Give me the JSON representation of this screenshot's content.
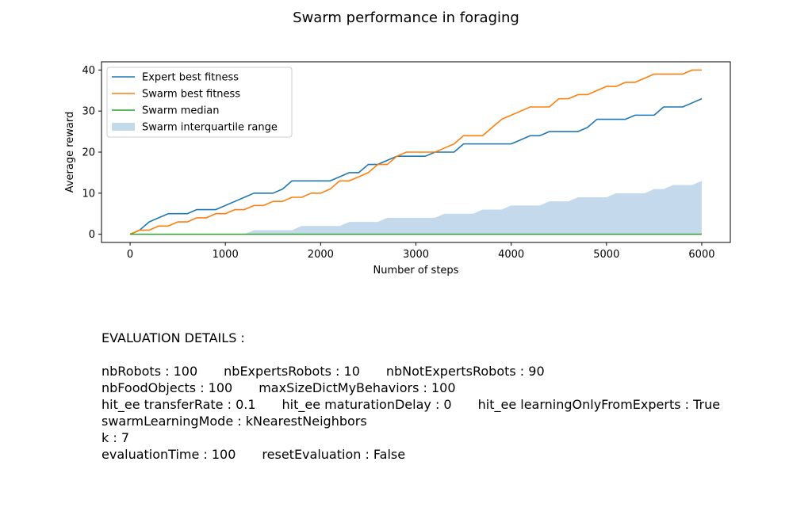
{
  "chart_data": {
    "type": "line",
    "title": "Swarm performance in foraging",
    "xlabel": "Number of steps",
    "ylabel": "Average reward",
    "xlim": [
      -300,
      6300
    ],
    "ylim": [
      -2,
      42
    ],
    "xticks": [
      0,
      1000,
      2000,
      3000,
      4000,
      5000,
      6000
    ],
    "yticks": [
      0,
      10,
      20,
      30,
      40
    ],
    "grid": false,
    "legend_position": "top-left",
    "x": [
      0,
      100,
      200,
      300,
      400,
      500,
      600,
      700,
      800,
      900,
      1000,
      1100,
      1200,
      1300,
      1400,
      1500,
      1600,
      1700,
      1800,
      1900,
      2000,
      2100,
      2200,
      2300,
      2400,
      2500,
      2600,
      2700,
      2800,
      2900,
      3000,
      3100,
      3200,
      3300,
      3400,
      3500,
      3600,
      3700,
      3800,
      3900,
      4000,
      4100,
      4200,
      4300,
      4400,
      4500,
      4600,
      4700,
      4800,
      4900,
      5000,
      5100,
      5200,
      5300,
      5400,
      5500,
      5600,
      5700,
      5800,
      5900,
      6000
    ],
    "series": [
      {
        "name": "Expert best fitness",
        "type": "line",
        "color": "#1f77b4",
        "values": [
          0,
          1,
          3,
          4,
          5,
          5,
          5,
          6,
          6,
          6,
          7,
          8,
          9,
          10,
          10,
          10,
          11,
          13,
          13,
          13,
          13,
          13,
          14,
          15,
          15,
          17,
          17,
          18,
          19,
          19,
          19,
          19,
          20,
          20,
          20,
          22,
          22,
          22,
          22,
          22,
          22,
          23,
          24,
          24,
          25,
          25,
          25,
          25,
          26,
          28,
          28,
          28,
          28,
          29,
          29,
          29,
          31,
          31,
          31,
          32,
          33
        ]
      },
      {
        "name": "Swarm best fitness",
        "type": "line",
        "color": "#ff7f0e",
        "values": [
          0,
          1,
          1,
          2,
          2,
          3,
          3,
          4,
          4,
          5,
          5,
          6,
          6,
          7,
          7,
          8,
          8,
          9,
          9,
          10,
          10,
          11,
          13,
          13,
          14,
          15,
          17,
          17,
          19,
          20,
          20,
          20,
          20,
          21,
          22,
          24,
          24,
          24,
          26,
          28,
          29,
          30,
          31,
          31,
          31,
          33,
          33,
          34,
          34,
          35,
          36,
          36,
          37,
          37,
          38,
          39,
          39,
          39,
          39,
          40,
          40
        ]
      },
      {
        "name": "Swarm median",
        "type": "line",
        "color": "#2ca02c",
        "values": [
          0,
          0,
          0,
          0,
          0,
          0,
          0,
          0,
          0,
          0,
          0,
          0,
          0,
          0,
          0,
          0,
          0,
          0,
          0,
          0,
          0,
          0,
          0,
          0,
          0,
          0,
          0,
          0,
          0,
          0,
          0,
          0,
          0,
          0,
          0,
          0,
          0,
          0,
          0,
          0,
          0,
          0,
          0,
          0,
          0,
          0,
          0,
          0,
          0,
          0,
          0,
          0,
          0,
          0,
          0,
          0,
          0,
          0,
          0,
          0,
          0
        ]
      },
      {
        "name": "Swarm interquartile range",
        "type": "area",
        "color": "#c5d9ec",
        "lower": [
          0,
          0,
          0,
          0,
          0,
          0,
          0,
          0,
          0,
          0,
          0,
          0,
          0,
          0,
          0,
          0,
          0,
          0,
          0,
          0,
          0,
          0,
          0,
          0,
          0,
          0,
          0,
          0,
          0,
          0,
          0,
          0,
          0,
          0,
          0,
          0,
          0,
          0,
          0,
          0,
          0,
          0,
          0,
          0,
          0,
          0,
          0,
          0,
          0,
          0,
          0,
          0,
          0,
          0,
          0,
          0,
          0,
          0,
          0,
          0,
          0
        ],
        "upper": [
          0,
          0,
          0,
          0,
          0,
          0,
          0,
          0,
          0,
          0,
          0,
          0,
          0,
          1,
          1,
          1,
          1,
          1,
          2,
          2,
          2,
          2,
          2,
          3,
          3,
          3,
          3,
          4,
          4,
          4,
          4,
          4,
          4,
          5,
          5,
          5,
          5,
          6,
          6,
          6,
          7,
          7,
          7,
          7,
          8,
          8,
          8,
          9,
          9,
          9,
          9,
          10,
          10,
          10,
          10,
          11,
          11,
          12,
          12,
          12,
          13
        ]
      }
    ]
  },
  "details": {
    "heading": "EVALUATION DETAILS :",
    "rows": [
      [
        "nbRobots : 100",
        "nbExpertsRobots : 10",
        "nbNotExpertsRobots : 90"
      ],
      [
        "nbFoodObjects : 100",
        "maxSizeDictMyBehaviors : 100"
      ],
      [
        "hit_ee transferRate : 0.1",
        "hit_ee maturationDelay : 0",
        "hit_ee learningOnlyFromExperts : True"
      ],
      [
        "swarmLearningMode : kNearestNeighbors"
      ],
      [
        "k : 7"
      ],
      [
        "evaluationTime : 100",
        "resetEvaluation : False"
      ]
    ]
  }
}
